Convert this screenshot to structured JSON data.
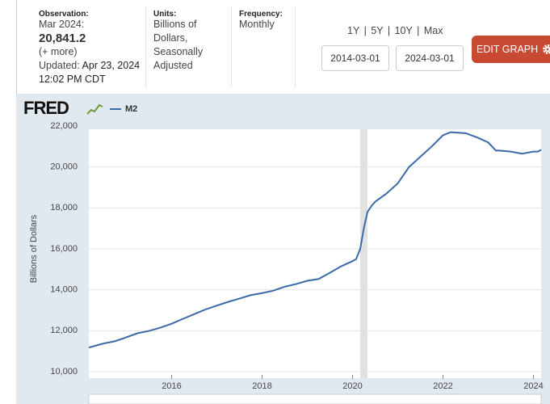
{
  "header": {
    "observation_label": "Observation:",
    "observation_date": "Mar 2024:",
    "observation_value": "20,841.2",
    "more": "(+ more)",
    "updated_label": "Updated:",
    "updated_date": "Apr 23, 2024",
    "updated_time": "12:02 PM CDT",
    "units_label": "Units:",
    "units": [
      "Billions of",
      "Dollars,",
      "Seasonally",
      "Adjusted"
    ],
    "frequency_label": "Frequency:",
    "frequency": "Monthly",
    "range_links": [
      "1Y",
      "5Y",
      "10Y",
      "Max"
    ],
    "range_separator": "|",
    "start_date": "2014-03-01",
    "end_date": "2024-03-01",
    "edit_button": "EDIT GRAPH"
  },
  "chart_data": {
    "type": "line",
    "logo": "FRED",
    "y_label": "Billions of Dollars",
    "x": [
      2014.17,
      2014.5,
      2014.75,
      2015.0,
      2015.25,
      2015.5,
      2015.75,
      2016.0,
      2016.25,
      2016.5,
      2016.75,
      2017.0,
      2017.25,
      2017.5,
      2017.75,
      2018.0,
      2018.25,
      2018.5,
      2018.75,
      2019.0,
      2019.25,
      2019.5,
      2019.75,
      2020.0,
      2020.08,
      2020.17,
      2020.25,
      2020.33,
      2020.42,
      2020.5,
      2020.75,
      2021.0,
      2021.25,
      2021.5,
      2021.75,
      2022.0,
      2022.17,
      2022.5,
      2022.75,
      2023.0,
      2023.17,
      2023.25,
      2023.5,
      2023.75,
      2024.0,
      2024.1,
      2024.17
    ],
    "series": [
      {
        "name": "M2",
        "color": "#3a6aa8",
        "values": [
          11180,
          11380,
          11490,
          11680,
          11880,
          11990,
          12150,
          12340,
          12580,
          12810,
          13040,
          13230,
          13410,
          13570,
          13740,
          13840,
          13960,
          14150,
          14280,
          14440,
          14530,
          14830,
          15150,
          15400,
          15500,
          16000,
          17000,
          17800,
          18100,
          18300,
          18700,
          19200,
          20000,
          20500,
          21000,
          21550,
          21700,
          21650,
          21450,
          21200,
          20800,
          20800,
          20750,
          20650,
          20750,
          20750,
          20841.2
        ]
      }
    ],
    "shaded_x": [
      2020.17,
      2020.33
    ],
    "xlim": [
      2014.17,
      2024.17
    ],
    "xticks": [
      2016,
      2018,
      2020,
      2022,
      2024
    ],
    "ylim": [
      10000,
      22000
    ],
    "yticks": [
      {
        "value": 10000,
        "label": "10,000"
      },
      {
        "value": 12000,
        "label": "12,000"
      },
      {
        "value": 14000,
        "label": "14,000"
      },
      {
        "value": 16000,
        "label": "16,000"
      },
      {
        "value": 18000,
        "label": "18,000"
      },
      {
        "value": 20000,
        "label": "20,000"
      },
      {
        "value": 22000,
        "label": "22,000"
      }
    ],
    "grid": true
  }
}
